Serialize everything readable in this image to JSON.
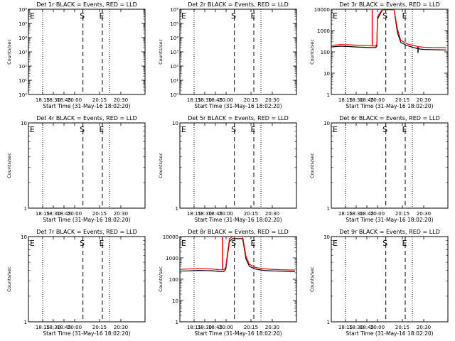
{
  "figure": {
    "background": "#ffffff",
    "event_color": "#000000",
    "lld_color": "#ff0000"
  },
  "chart_data": [
    {
      "id": "det1r",
      "type": "line",
      "title": "Det 1r BLACK = Events, RED = LLD",
      "xlabel": "Start Time (31-May-16 18:02:20)",
      "ylabel": "Counts/sec",
      "yscale": "log",
      "ylim": [
        1,
        1000000
      ],
      "yticklabels": [
        "10⁰",
        "10¹",
        "10²",
        "10³",
        "10⁴",
        "10⁵",
        "10⁶"
      ],
      "xlim": [
        "18:02:20",
        "21:02:00"
      ],
      "xticklabels": [
        "18:15",
        "18:30",
        "18:45",
        "20:00",
        "20:15",
        "20:30"
      ],
      "markers": [
        {
          "label": "E",
          "time": "18:02:20",
          "style": "dotted"
        },
        {
          "label": "",
          "time": "18:15:00",
          "style": "dotted"
        },
        {
          "label": "S",
          "time": "20:05:00",
          "style": "dashed"
        },
        {
          "label": "E",
          "time": "20:17:00",
          "style": "dashed"
        },
        {
          "label": "",
          "time": "20:22:00",
          "style": "dotted"
        }
      ],
      "series": []
    },
    {
      "id": "det2r",
      "type": "line",
      "title": "Det 2r BLACK = Events, RED = LLD",
      "xlabel": "Start Time (31-May-16 18:02:20)",
      "ylabel": "Counts/sec",
      "yscale": "log",
      "ylim": [
        1,
        1000000
      ],
      "yticklabels": [
        "10⁰",
        "10¹",
        "10²",
        "10³",
        "10⁴",
        "10⁵",
        "10⁶"
      ],
      "xlim": [
        "18:02:20",
        "21:02:00"
      ],
      "xticklabels": [
        "18:15",
        "18:30",
        "18:45",
        "20:00",
        "20:15",
        "20:30"
      ],
      "markers": [
        {
          "label": "E",
          "time": "18:02:20",
          "style": "dotted"
        },
        {
          "label": "",
          "time": "18:15:00",
          "style": "dotted"
        },
        {
          "label": "S",
          "time": "20:05:00",
          "style": "dashed"
        },
        {
          "label": "E",
          "time": "20:17:00",
          "style": "dashed"
        },
        {
          "label": "",
          "time": "20:22:00",
          "style": "dotted"
        }
      ],
      "series": []
    },
    {
      "id": "det3r",
      "type": "line",
      "title": "Det 3r BLACK = Events, RED = LLD",
      "xlabel": "Start Time (31-May-16 18:02:20)",
      "ylabel": "Counts/sec",
      "yscale": "log",
      "ylim": [
        1,
        10000
      ],
      "yticklabels": [
        "1",
        "10",
        "100",
        "1000",
        "10000"
      ],
      "xlim": [
        "18:02:20",
        "21:02:00"
      ],
      "xticklabels": [
        "18:15",
        "18:30",
        "18:45",
        "20:00",
        "20:15",
        "20:30"
      ],
      "markers": [
        {
          "label": "E",
          "time": "18:02:20",
          "style": "dotted"
        },
        {
          "label": "",
          "time": "18:15:00",
          "style": "dotted"
        },
        {
          "label": "S",
          "time": "20:05:00",
          "style": "dashed"
        },
        {
          "label": "E",
          "time": "20:17:00",
          "style": "dashed"
        },
        {
          "label": "",
          "time": "20:22:00",
          "style": "dotted"
        }
      ],
      "series": [
        {
          "name": "Events",
          "color": "#000000",
          "points": [
            [
              "18:02:20",
              170
            ],
            [
              "18:10:00",
              185
            ],
            [
              "18:20:00",
              178
            ],
            [
              "18:30:00",
              170
            ],
            [
              "18:40:00",
              165
            ],
            [
              "18:50:00",
              160
            ],
            [
              "19:00:00",
              160
            ],
            [
              "19:10:00",
              158
            ],
            [
              "19:20:00",
              158
            ],
            [
              "19:30:00",
              158
            ],
            [
              "19:40:00",
              160
            ],
            [
              "19:48:00",
              160
            ],
            [
              "19:55:00",
              185
            ],
            [
              "20:00:00",
              3500
            ],
            [
              "20:03:00",
              9500
            ],
            [
              "20:10:00",
              9500
            ],
            [
              "20:12:00",
              800
            ],
            [
              "20:14:00",
              280
            ],
            [
              "20:18:00",
              200
            ],
            [
              "20:23:00",
              160
            ],
            [
              "20:26:00",
              140
            ],
            [
              "20:30:00",
              130
            ],
            [
              "20:40:00",
              128
            ],
            [
              "20:50:00",
              125
            ],
            [
              "21:00:00",
              123
            ]
          ]
        },
        {
          "name": "LLD",
          "color": "#ff0000",
          "points": [
            [
              "18:02:20",
              200
            ],
            [
              "18:10:00",
              220
            ],
            [
              "18:20:00",
              215
            ],
            [
              "18:30:00",
              205
            ],
            [
              "18:40:00",
              200
            ],
            [
              "18:50:00",
              195
            ],
            [
              "19:00:00",
              195
            ],
            [
              "19:10:00",
              192
            ],
            [
              "19:20:00",
              190
            ],
            [
              "19:30:00",
              190
            ],
            [
              "19:40:00",
              190
            ],
            [
              "19:48:00",
              190
            ],
            [
              "19:55:00",
              230
            ],
            [
              "20:00:00",
              4500
            ],
            [
              "20:03:00",
              10000
            ],
            [
              "20:10:00",
              10000
            ],
            [
              "20:12:00",
              1200
            ],
            [
              "20:14:00",
              350
            ],
            [
              "20:18:00",
              240
            ],
            [
              "20:23:00",
              200
            ],
            [
              "20:26:00",
              175
            ],
            [
              "20:30:00",
              165
            ],
            [
              "20:40:00",
              160
            ],
            [
              "20:50:00",
              158
            ],
            [
              "21:00:00",
              156
            ]
          ]
        }
      ],
      "spikes": [
        {
          "color": "#ff0000",
          "time": "19:23:00",
          "from": 200,
          "to": 10000
        },
        {
          "color": "#000000",
          "time": "20:26:00",
          "from": 90,
          "to": 170
        }
      ]
    },
    {
      "id": "det4r",
      "type": "line",
      "title": "Det 4r BLACK = Events, RED = LLD",
      "xlabel": "Start Time (31-May-16 18:02:20)",
      "ylabel": "Counts/sec",
      "yscale": "log",
      "ylim": [
        1,
        10
      ],
      "yticklabels": [
        "1",
        "10"
      ],
      "xlim": [
        "18:02:20",
        "21:02:00"
      ],
      "xticklabels": [
        "18:15",
        "18:30",
        "18:45",
        "20:00",
        "20:15",
        "20:30"
      ],
      "markers": [
        {
          "label": "E",
          "time": "18:02:20",
          "style": "dotted"
        },
        {
          "label": "",
          "time": "18:15:00",
          "style": "dotted"
        },
        {
          "label": "S",
          "time": "20:05:00",
          "style": "dashed"
        },
        {
          "label": "E",
          "time": "20:17:00",
          "style": "dashed"
        },
        {
          "label": "",
          "time": "20:22:00",
          "style": "dotted"
        }
      ],
      "series": []
    },
    {
      "id": "det5r",
      "type": "line",
      "title": "Det 5r BLACK = Events, RED = LLD",
      "xlabel": "Start Time (31-May-16 18:02:20)",
      "ylabel": "Counts/sec",
      "yscale": "log",
      "ylim": [
        1,
        10
      ],
      "yticklabels": [
        "1",
        "10"
      ],
      "xlim": [
        "18:02:20",
        "21:02:00"
      ],
      "xticklabels": [
        "18:15",
        "18:30",
        "18:45",
        "20:00",
        "20:15",
        "20:30"
      ],
      "markers": [
        {
          "label": "E",
          "time": "18:02:20",
          "style": "dotted"
        },
        {
          "label": "",
          "time": "18:15:00",
          "style": "dotted"
        },
        {
          "label": "S",
          "time": "20:05:00",
          "style": "dashed"
        },
        {
          "label": "E",
          "time": "20:17:00",
          "style": "dashed"
        },
        {
          "label": "",
          "time": "20:22:00",
          "style": "dotted"
        }
      ],
      "series": []
    },
    {
      "id": "det6r",
      "type": "line",
      "title": "Det 6r BLACK = Events, RED = LLD",
      "xlabel": "Start Time (31-May-16 18:02:20)",
      "ylabel": "Counts/sec",
      "yscale": "log",
      "ylim": [
        1,
        10
      ],
      "yticklabels": [
        "1",
        "10"
      ],
      "xlim": [
        "18:02:20",
        "21:02:00"
      ],
      "xticklabels": [
        "18:15",
        "18:30",
        "18:45",
        "20:00",
        "20:15",
        "20:30"
      ],
      "markers": [
        {
          "label": "E",
          "time": "18:02:20",
          "style": "dotted"
        },
        {
          "label": "",
          "time": "18:15:00",
          "style": "dotted"
        },
        {
          "label": "S",
          "time": "20:05:00",
          "style": "dashed"
        },
        {
          "label": "E",
          "time": "20:17:00",
          "style": "dashed"
        },
        {
          "label": "",
          "time": "20:22:00",
          "style": "dotted"
        }
      ],
      "series": []
    },
    {
      "id": "det7r",
      "type": "line",
      "title": "Det 7r BLACK = Events, RED = LLD",
      "xlabel": "Start Time (31-May-16 18:02:20)",
      "ylabel": "Counts/sec",
      "yscale": "log",
      "ylim": [
        1,
        10
      ],
      "yticklabels": [
        "1",
        "10"
      ],
      "xlim": [
        "18:02:20",
        "21:02:00"
      ],
      "xticklabels": [
        "18:15",
        "18:30",
        "18:45",
        "20:00",
        "20:15",
        "20:30"
      ],
      "markers": [
        {
          "label": "E",
          "time": "18:02:20",
          "style": "dotted"
        },
        {
          "label": "",
          "time": "18:15:00",
          "style": "dotted"
        },
        {
          "label": "S",
          "time": "20:05:00",
          "style": "dashed"
        },
        {
          "label": "E",
          "time": "20:17:00",
          "style": "dashed"
        },
        {
          "label": "",
          "time": "20:22:00",
          "style": "dotted"
        }
      ],
      "series": []
    },
    {
      "id": "det8r",
      "type": "line",
      "title": "Det 8r BLACK = Events, RED = LLD",
      "xlabel": "Start Time (31-May-16 18:02:20)",
      "ylabel": "Counts/sec",
      "yscale": "log",
      "ylim": [
        1,
        10000
      ],
      "yticklabels": [
        "1",
        "10",
        "100",
        "1000",
        "10000"
      ],
      "xlim": [
        "18:02:20",
        "21:02:00"
      ],
      "xticklabels": [
        "18:15",
        "18:30",
        "18:45",
        "20:00",
        "20:15",
        "20:30"
      ],
      "markers": [
        {
          "label": "E",
          "time": "18:02:20",
          "style": "dotted"
        },
        {
          "label": "",
          "time": "18:15:00",
          "style": "dotted"
        },
        {
          "label": "S",
          "time": "20:05:00",
          "style": "dashed"
        },
        {
          "label": "E",
          "time": "20:17:00",
          "style": "dashed"
        },
        {
          "label": "",
          "time": "20:22:00",
          "style": "dotted"
        }
      ],
      "series": [
        {
          "name": "Events",
          "color": "#000000",
          "points": [
            [
              "18:02:20",
              240
            ],
            [
              "18:10:00",
              245
            ],
            [
              "18:20:00",
              260
            ],
            [
              "18:30:00",
              255
            ],
            [
              "18:40:00",
              250
            ],
            [
              "18:50:00",
              240
            ],
            [
              "19:00:00",
              235
            ],
            [
              "19:10:00",
              230
            ],
            [
              "19:20:00",
              228
            ],
            [
              "19:30:00",
              228
            ],
            [
              "19:40:00",
              230
            ],
            [
              "19:50:00",
              240
            ],
            [
              "19:58:00",
              300
            ],
            [
              "20:02:00",
              6000
            ],
            [
              "20:04:00",
              8000
            ],
            [
              "20:10:00",
              8000
            ],
            [
              "20:12:00",
              900
            ],
            [
              "20:14:00",
              400
            ],
            [
              "20:18:00",
              300
            ],
            [
              "20:24:00",
              260
            ],
            [
              "20:30:00",
              245
            ],
            [
              "20:40:00",
              238
            ],
            [
              "20:50:00",
              232
            ],
            [
              "21:00:00",
              228
            ]
          ]
        },
        {
          "name": "LLD",
          "color": "#ff0000",
          "points": [
            [
              "18:02:20",
              290
            ],
            [
              "18:10:00",
              300
            ],
            [
              "18:20:00",
              320
            ],
            [
              "18:30:00",
              310
            ],
            [
              "18:40:00",
              300
            ],
            [
              "18:50:00",
              290
            ],
            [
              "19:00:00",
              285
            ],
            [
              "19:10:00",
              280
            ],
            [
              "19:20:00",
              278
            ],
            [
              "19:30:00",
              278
            ],
            [
              "19:40:00",
              280
            ],
            [
              "19:50:00",
              295
            ],
            [
              "19:58:00",
              380
            ],
            [
              "20:02:00",
              8000
            ],
            [
              "20:04:00",
              10000
            ],
            [
              "20:10:00",
              10000
            ],
            [
              "20:12:00",
              1200
            ],
            [
              "20:14:00",
              500
            ],
            [
              "20:18:00",
              360
            ],
            [
              "20:24:00",
              310
            ],
            [
              "20:30:00",
              290
            ],
            [
              "20:40:00",
              280
            ],
            [
              "20:50:00",
              275
            ],
            [
              "21:00:00",
              270
            ]
          ]
        }
      ],
      "spikes": [
        {
          "color": "#ff0000",
          "time": "19:35:00",
          "from": 290,
          "to": 10000
        }
      ]
    },
    {
      "id": "det9r",
      "type": "line",
      "title": "Det 9r BLACK = Events, RED = LLD",
      "xlabel": "Start Time (31-May-16 18:02:20)",
      "ylabel": "Counts/sec",
      "yscale": "log",
      "ylim": [
        1,
        10
      ],
      "yticklabels": [
        "1",
        "10"
      ],
      "xlim": [
        "18:02:20",
        "21:02:00"
      ],
      "xticklabels": [
        "18:15",
        "18:30",
        "18:45",
        "20:00",
        "20:15",
        "20:30"
      ],
      "markers": [
        {
          "label": "E",
          "time": "18:02:20",
          "style": "dotted"
        },
        {
          "label": "",
          "time": "18:15:00",
          "style": "dotted"
        },
        {
          "label": "S",
          "time": "20:05:00",
          "style": "dashed"
        },
        {
          "label": "E",
          "time": "20:17:00",
          "style": "dashed"
        },
        {
          "label": "",
          "time": "20:22:00",
          "style": "dotted"
        }
      ],
      "series": []
    }
  ]
}
